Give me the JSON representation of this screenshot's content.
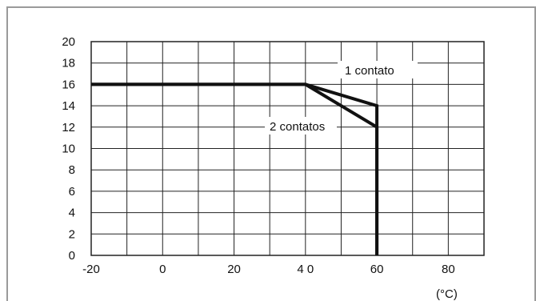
{
  "chart_data": {
    "type": "line",
    "x_ticks": [
      "-20",
      "0",
      "20",
      "4 0",
      "60",
      "80"
    ],
    "y_ticks": [
      "0",
      "2",
      "4",
      "6",
      "8",
      "10",
      "12",
      "14",
      "16",
      "18",
      "20"
    ],
    "unit_label": "(°C)",
    "xlim": [
      -20,
      90
    ],
    "ylim": [
      0,
      20
    ],
    "grid_x_step": 10,
    "grid_y_step": 2,
    "grid": true,
    "series": [
      {
        "name": "1 contato",
        "x": [
          -20,
          40,
          60,
          60
        ],
        "y": [
          16,
          16,
          14,
          0
        ]
      },
      {
        "name": "2 contatos",
        "x": [
          -20,
          40,
          60,
          60
        ],
        "y": [
          16,
          16,
          12,
          0
        ]
      }
    ],
    "colors": {
      "grid": "#222222",
      "series": "#111111",
      "frame": "#9a9a9a"
    }
  }
}
